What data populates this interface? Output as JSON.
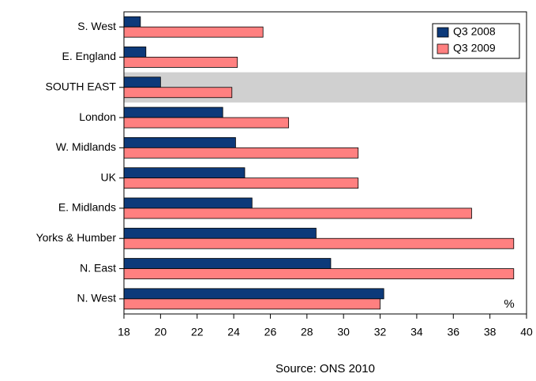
{
  "chart_data": {
    "type": "barh",
    "categories": [
      "S. West",
      "E. England",
      "SOUTH EAST",
      "London",
      "W. Midlands",
      "UK",
      "E. Midlands",
      "Yorks & Humber",
      "N. East",
      "N. West"
    ],
    "series": [
      {
        "name": "Q3 2008",
        "color": "#0d3a7a",
        "values": [
          18.9,
          19.2,
          20.0,
          23.4,
          24.1,
          24.6,
          25.0,
          28.5,
          29.3,
          32.2
        ]
      },
      {
        "name": "Q3 2009",
        "color": "#ff8080",
        "values": [
          25.6,
          24.2,
          23.9,
          27.0,
          30.8,
          30.8,
          37.0,
          39.3,
          39.3,
          32.0
        ]
      }
    ],
    "xlim": [
      18,
      40
    ],
    "xticks": [
      18,
      20,
      22,
      24,
      26,
      28,
      30,
      32,
      34,
      36,
      38,
      40
    ],
    "highlight_index": 2,
    "highlight_color": "#d0d0d0",
    "unit_label": "%",
    "source": "Source: ONS 2010",
    "legend": "top-right"
  }
}
